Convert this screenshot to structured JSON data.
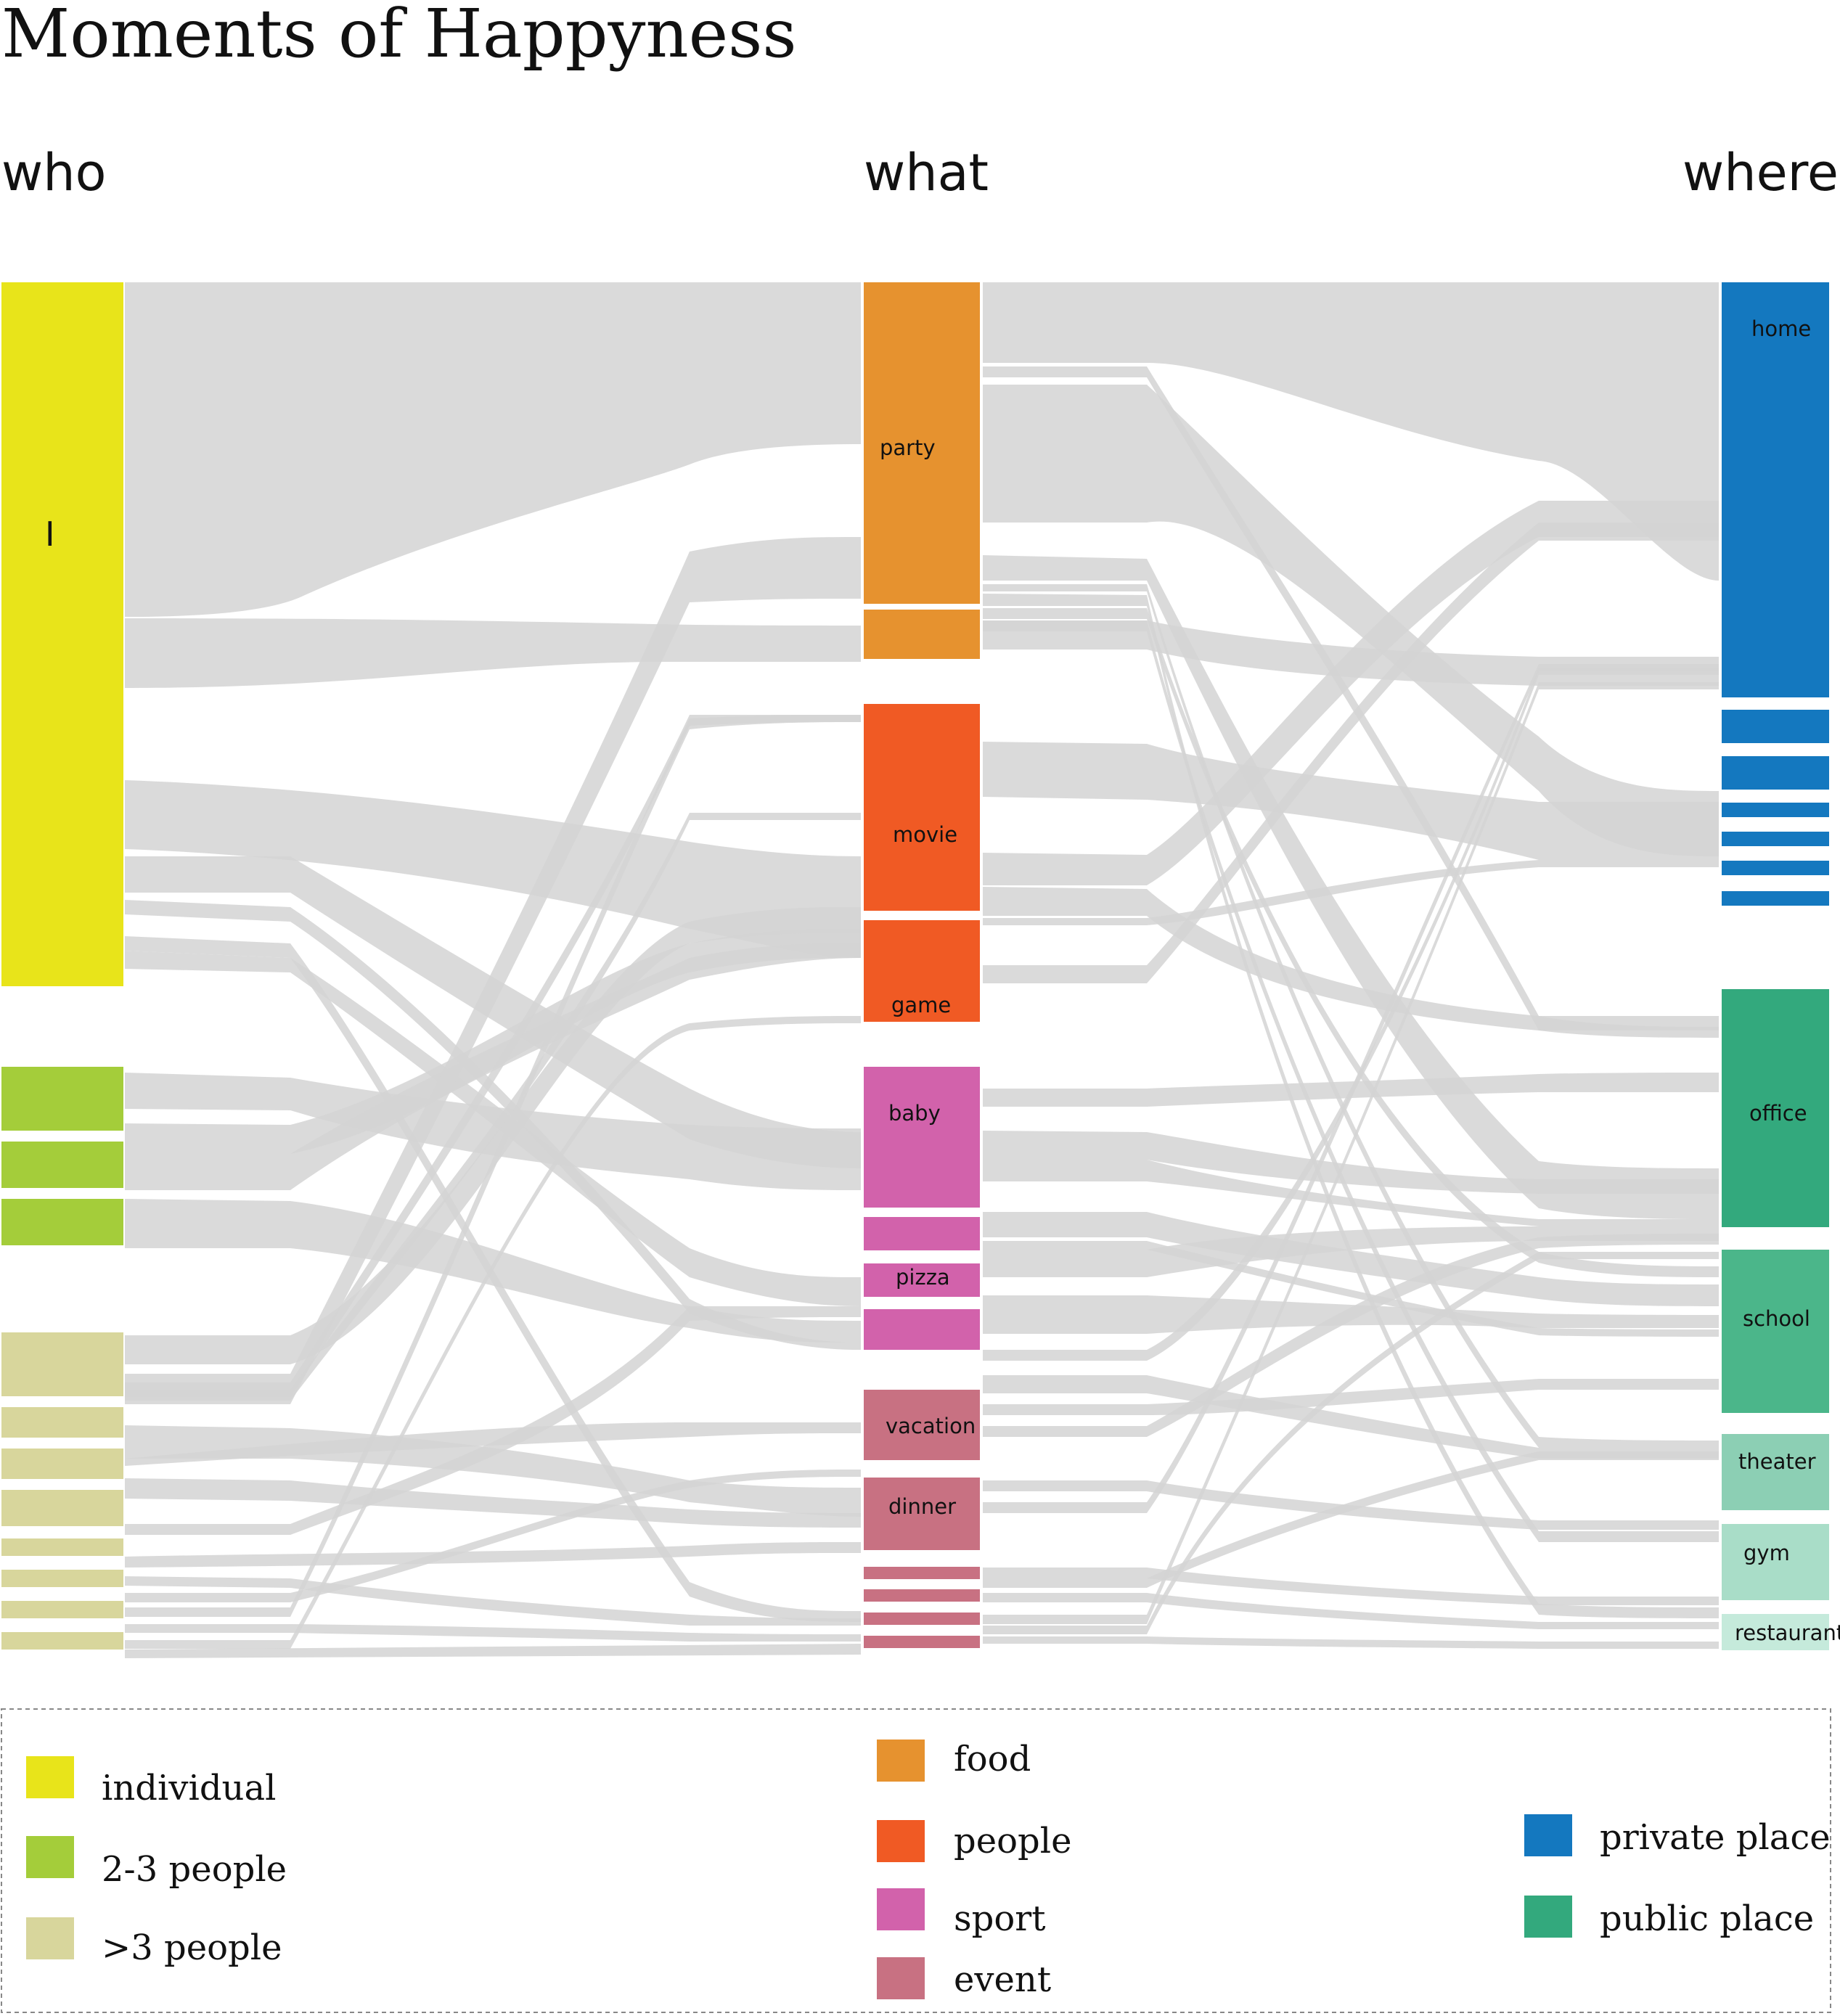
{
  "title": "Moments of Happyness",
  "columns": {
    "who": "who",
    "what": "what",
    "where": "where"
  },
  "colors": {
    "individual": "#e8e41a",
    "two_three": "#a4cd3a",
    "more_three": "#d8d69c",
    "food": "#e6922f",
    "people": "#f05a24",
    "sport": "#d262ab",
    "event": "#c87182",
    "private": "#1478bf",
    "office": "#33a97d",
    "school": "#4bb68a",
    "theater": "#8ccfb4",
    "gym": "#a9ddc8",
    "restaurant": "#c5eadb",
    "link": "#d4d4d4"
  },
  "labels": {
    "I": "I",
    "party": "party",
    "movie": "movie",
    "game": "game",
    "baby": "baby",
    "pizza": "pizza",
    "vacation": "vacation",
    "dinner": "dinner",
    "home": "home",
    "office": "office",
    "school": "school",
    "theater": "theater",
    "gym": "gym",
    "restaurant": "restaurant"
  },
  "legend": {
    "who": [
      "individual",
      "2-3 people",
      ">3 people"
    ],
    "what": [
      "food",
      "people",
      "sport",
      "event"
    ],
    "where": [
      "private place",
      "public place"
    ]
  }
}
